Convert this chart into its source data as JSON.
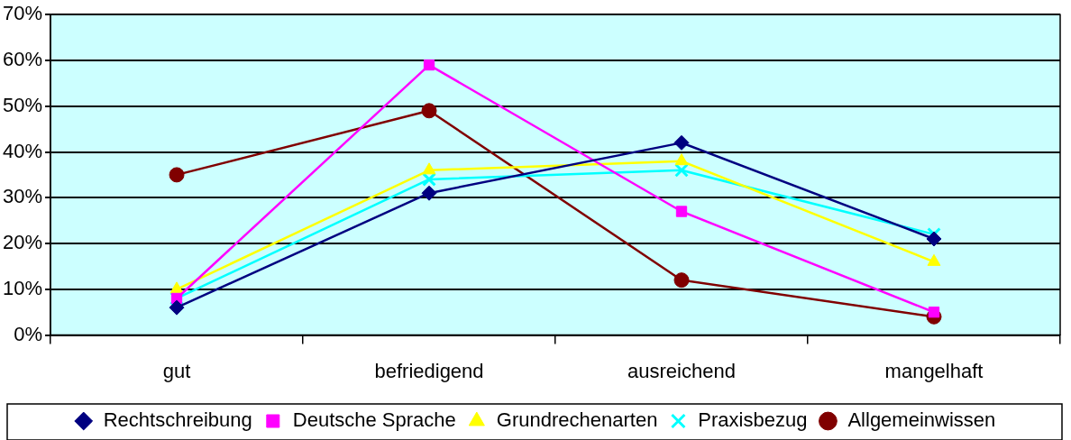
{
  "chart_data": {
    "type": "line",
    "categories": [
      "gut",
      "befriedigend",
      "ausreichend",
      "mangelhaft"
    ],
    "series": [
      {
        "name": "Rechtschreibung",
        "color": "#000080",
        "marker": "diamond",
        "values": [
          6,
          31,
          42,
          21
        ]
      },
      {
        "name": "Deutsche Sprache",
        "color": "#ff00ff",
        "marker": "square",
        "values": [
          8,
          59,
          27,
          5
        ]
      },
      {
        "name": "Grundrechenarten",
        "color": "#ffff00",
        "marker": "triangle",
        "values": [
          10,
          36,
          38,
          16
        ]
      },
      {
        "name": "Praxisbezug",
        "color": "#00ffff",
        "marker": "cross",
        "values": [
          8,
          34,
          36,
          22
        ]
      },
      {
        "name": "Allgemeinwissen",
        "color": "#800000",
        "marker": "circle",
        "values": [
          35,
          49,
          12,
          4
        ]
      }
    ],
    "ylim": [
      0,
      70
    ],
    "yticks": [
      {
        "value": 0,
        "label": "0%"
      },
      {
        "value": 10,
        "label": "10%"
      },
      {
        "value": 20,
        "label": "20%"
      },
      {
        "value": 30,
        "label": "30%"
      },
      {
        "value": 40,
        "label": "40%"
      },
      {
        "value": 50,
        "label": "50%"
      },
      {
        "value": 60,
        "label": "60%"
      },
      {
        "value": 70,
        "label": "70%"
      }
    ],
    "grid": "y",
    "legend": "bottom"
  }
}
